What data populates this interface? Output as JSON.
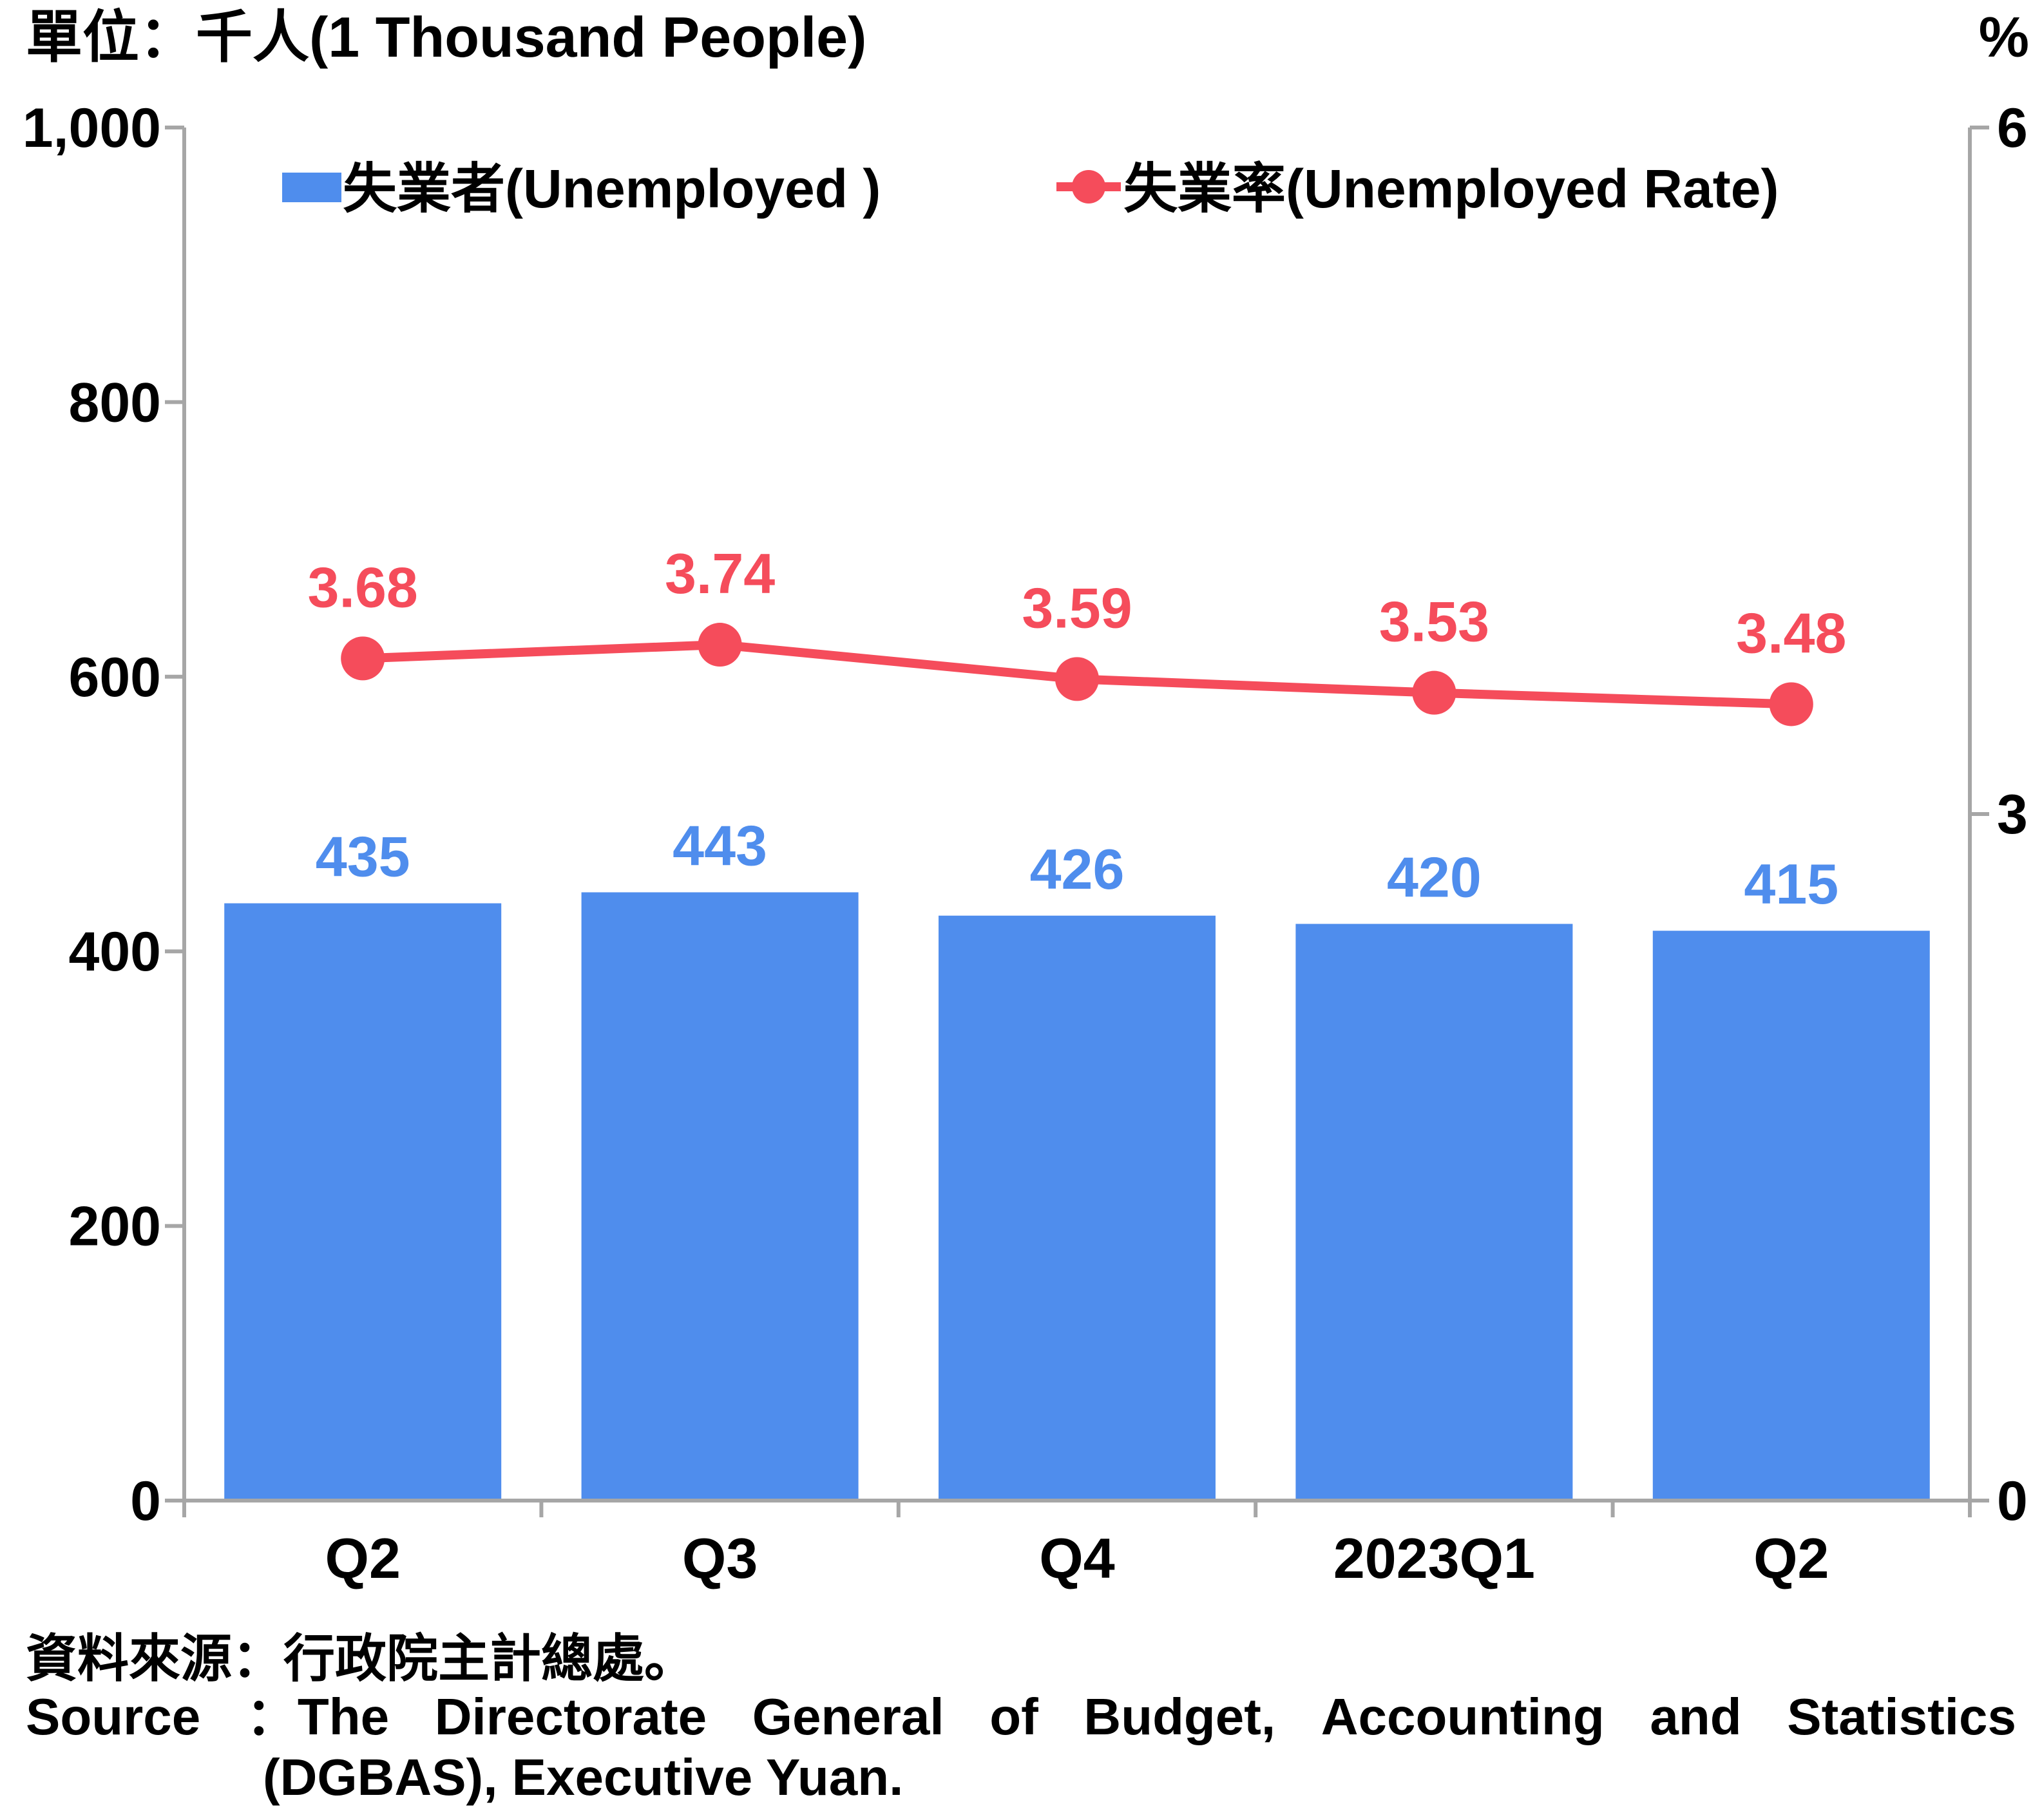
{
  "chart_data": {
    "type": "bar",
    "unit_label": "單位：千人(1 Thousand People)",
    "right_unit_label": "%",
    "categories": [
      "Q2",
      "Q3",
      "Q4",
      "2023Q1",
      "Q2"
    ],
    "series": [
      {
        "name": "失業者(Unemployed )",
        "type": "bar",
        "axis": "left",
        "color": "#4f8ded",
        "values": [
          435,
          443,
          426,
          420,
          415
        ]
      },
      {
        "name": "失業率(Unemployed Rate)",
        "type": "line",
        "axis": "right",
        "color": "#f54c5b",
        "values": [
          3.68,
          3.74,
          3.59,
          3.53,
          3.48
        ]
      }
    ],
    "left_axis": {
      "ylim": [
        0,
        1000
      ],
      "ticks": [
        "0",
        "200",
        "400",
        "600",
        "800",
        "1,000"
      ]
    },
    "right_axis": {
      "ylim": [
        0,
        6
      ],
      "ticks": [
        "0",
        "3",
        "6"
      ]
    },
    "grid": false,
    "legend_position": "top"
  },
  "source": {
    "zh": "資料來源：行政院主計總處。",
    "en_line1": [
      "Source",
      "：The",
      "Directorate",
      "General",
      "of",
      "Budget,",
      "Accounting",
      "and",
      "Statistics"
    ],
    "en_line2": "(DGBAS), Executive Yuan."
  }
}
